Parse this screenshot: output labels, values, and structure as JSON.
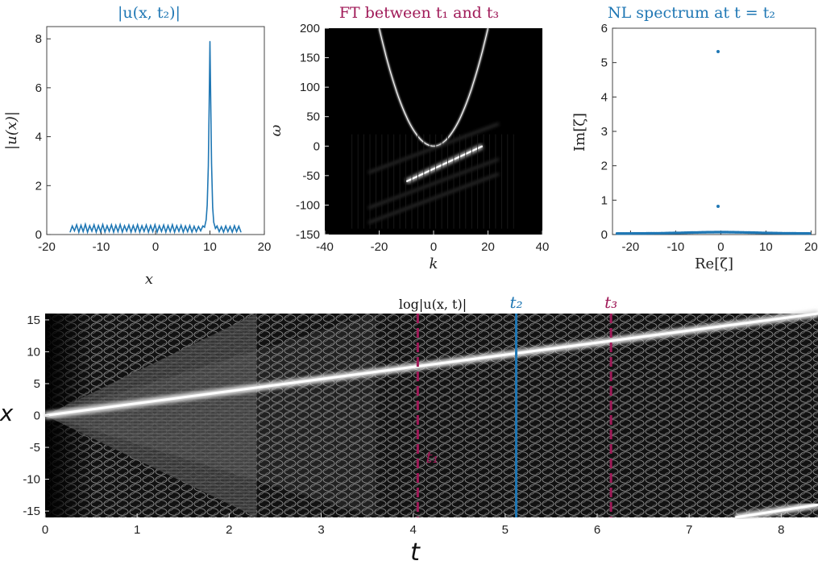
{
  "colors": {
    "blue": "#1f77b4",
    "crimson": "#a01a58",
    "heat_background": "#000000",
    "heat_ridge": "#ffffff"
  },
  "chart_data": [
    {
      "id": "profile",
      "type": "line",
      "title": "|u(x, t₂)|",
      "xlabel": "x",
      "ylabel": "|u(x)|",
      "xlim": [
        -20,
        20
      ],
      "ylim": [
        0,
        8.5
      ],
      "xticks": [
        -20,
        -10,
        0,
        10,
        20
      ],
      "yticks": [
        0,
        2,
        4,
        6,
        8
      ],
      "x_tick_labels": [
        "-20",
        "-10",
        "0",
        "10",
        "20"
      ],
      "y_tick_labels": [
        "0",
        "2",
        "4",
        "6",
        "8"
      ],
      "grid": false,
      "series": [
        {
          "color": "#1f77b4",
          "x": [
            -15.7,
            -15.3,
            -14.9,
            -14.5,
            -14.1,
            -13.7,
            -13.3,
            -12.9,
            -12.5,
            -12.1,
            -11.7,
            -11.3,
            -10.9,
            -10.5,
            -10.1,
            -9.7,
            -9.3,
            -8.9,
            -8.5,
            -8.1,
            -7.7,
            -7.3,
            -6.9,
            -6.5,
            -6.1,
            -5.7,
            -5.3,
            -4.9,
            -4.5,
            -4.1,
            -3.7,
            -3.3,
            -2.9,
            -2.5,
            -2.1,
            -1.7,
            -1.3,
            -0.9,
            -0.5,
            -0.1,
            0.3,
            0.7,
            1.1,
            1.5,
            1.9,
            2.3,
            2.7,
            3.1,
            3.5,
            3.9,
            4.3,
            4.7,
            5.1,
            5.5,
            5.9,
            6.3,
            6.7,
            7.1,
            7.5,
            7.9,
            8.3,
            8.7,
            9.0,
            9.3,
            9.5,
            9.7,
            9.85,
            10.0,
            10.15,
            10.3,
            10.5,
            10.7,
            11.0,
            11.3,
            11.7,
            12.1,
            12.5,
            12.9,
            13.3,
            13.7,
            14.1,
            14.5,
            14.9,
            15.3,
            15.7
          ],
          "y": [
            0.1,
            0.35,
            0.15,
            0.4,
            0.1,
            0.38,
            0.12,
            0.42,
            0.1,
            0.36,
            0.14,
            0.4,
            0.1,
            0.37,
            0.12,
            0.41,
            0.1,
            0.36,
            0.13,
            0.4,
            0.1,
            0.38,
            0.12,
            0.41,
            0.1,
            0.36,
            0.14,
            0.39,
            0.1,
            0.37,
            0.12,
            0.4,
            0.1,
            0.36,
            0.13,
            0.39,
            0.1,
            0.37,
            0.12,
            0.4,
            0.1,
            0.36,
            0.13,
            0.39,
            0.1,
            0.37,
            0.12,
            0.4,
            0.1,
            0.36,
            0.13,
            0.38,
            0.1,
            0.35,
            0.12,
            0.37,
            0.1,
            0.34,
            0.12,
            0.33,
            0.15,
            0.35,
            0.3,
            0.6,
            1.2,
            2.8,
            5.2,
            7.9,
            5.4,
            2.9,
            1.1,
            0.5,
            0.25,
            0.35,
            0.12,
            0.32,
            0.1,
            0.35,
            0.12,
            0.33,
            0.1,
            0.36,
            0.12,
            0.34,
            0.1
          ]
        }
      ]
    },
    {
      "id": "fourier",
      "type": "heatmap",
      "title": "FT between t₁ and t₃",
      "xlabel": "k",
      "ylabel": "ω",
      "xlim": [
        -40,
        40
      ],
      "ylim": [
        -150,
        200
      ],
      "xticks": [
        -40,
        -20,
        0,
        20,
        40
      ],
      "yticks": [
        -150,
        -100,
        -50,
        0,
        50,
        100,
        150,
        200
      ],
      "x_tick_labels": [
        "-40",
        "-20",
        "0",
        "20",
        "40"
      ],
      "y_tick_labels": [
        "-150",
        "-100",
        "-50",
        "0",
        "50",
        "100",
        "150",
        "200"
      ],
      "parabola": {
        "a": 0.5,
        "k_range": [
          -20,
          20
        ]
      },
      "soliton_line": {
        "k_from": -10,
        "k_to": 18,
        "w_from": -60,
        "w_to": 0
      }
    },
    {
      "id": "spectrum",
      "type": "scatter",
      "title": "NL spectrum at t = t₂",
      "xlabel": "Re[ζ]",
      "ylabel": "Im[ζ]",
      "xlim": [
        -24,
        21
      ],
      "ylim": [
        0,
        6
      ],
      "xticks": [
        -20,
        -10,
        0,
        10,
        20
      ],
      "yticks": [
        0,
        1,
        2,
        3,
        4,
        5,
        6
      ],
      "x_tick_labels": [
        "-20",
        "-10",
        "0",
        "10",
        "20"
      ],
      "y_tick_labels": [
        "0",
        "1",
        "2",
        "3",
        "4",
        "5",
        "6"
      ],
      "points": [
        {
          "x": -0.6,
          "y": 5.32
        },
        {
          "x": -0.6,
          "y": 0.82
        }
      ],
      "continuum": {
        "x_range": [
          -23,
          20
        ],
        "y": 0.03,
        "hump": 0.04
      }
    },
    {
      "id": "evolution",
      "type": "heatmap",
      "title": "log|u(x, t)|",
      "xlabel": "t",
      "ylabel": "x",
      "xlim": [
        0,
        8.4
      ],
      "ylim": [
        -16,
        16
      ],
      "xticks": [
        0,
        1,
        2,
        3,
        4,
        5,
        6,
        7,
        8
      ],
      "yticks": [
        -15,
        -10,
        -5,
        0,
        5,
        10,
        15
      ],
      "x_tick_labels": [
        "0",
        "1",
        "2",
        "3",
        "4",
        "5",
        "6",
        "7",
        "8"
      ],
      "y_tick_labels": [
        "-15",
        "-10",
        "-5",
        "0",
        "5",
        "10",
        "15"
      ],
      "ridges": [
        {
          "t0": 0.0,
          "x0": 0.0,
          "t1": 8.4,
          "x1": 16.0
        },
        {
          "t0": 7.5,
          "x0": -16.0,
          "t1": 8.4,
          "x1": -14.0
        }
      ],
      "markers": [
        {
          "t": 4.05,
          "label": "t₁",
          "style": "dashed",
          "color": "#a01a58",
          "label_pos": "inside"
        },
        {
          "t": 5.12,
          "label": "t₂",
          "style": "solid",
          "color": "#1f77b4",
          "label_pos": "above"
        },
        {
          "t": 6.15,
          "label": "t₃",
          "style": "dashed",
          "color": "#a01a58",
          "label_pos": "above"
        }
      ]
    }
  ]
}
